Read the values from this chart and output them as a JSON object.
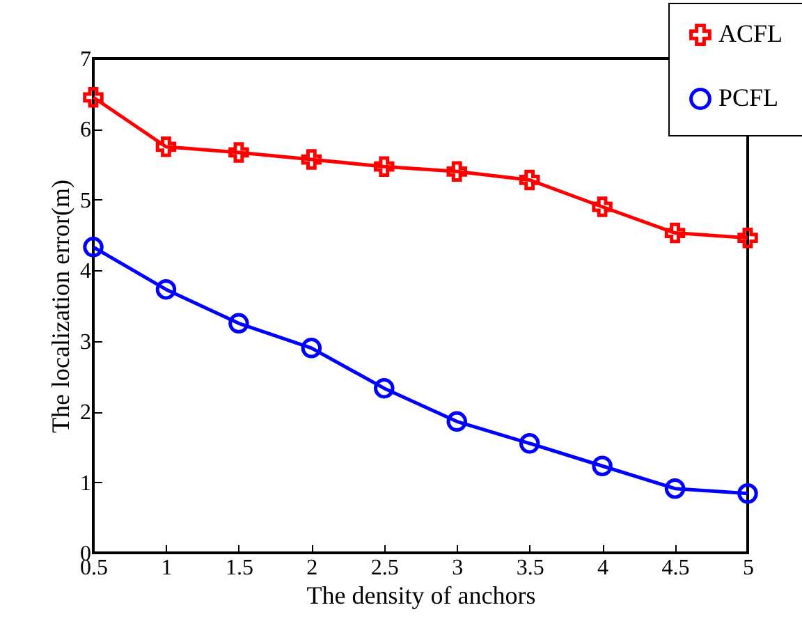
{
  "chart_data": {
    "type": "line",
    "xlabel": "The density of anchors",
    "ylabel": "The localization error(m)",
    "x": [
      0.5,
      1,
      1.5,
      2,
      2.5,
      3,
      3.5,
      4,
      4.5,
      5
    ],
    "series": [
      {
        "name": "ACFL",
        "color": "#ff0000",
        "marker": "cross",
        "values": [
          6.45,
          5.75,
          5.67,
          5.57,
          5.47,
          5.4,
          5.28,
          4.9,
          4.53,
          4.46
        ]
      },
      {
        "name": "PCFL",
        "color": "#0000ff",
        "marker": "circle",
        "values": [
          4.33,
          3.73,
          3.25,
          2.9,
          2.33,
          1.86,
          1.55,
          1.23,
          0.91,
          0.84
        ]
      }
    ],
    "xlim": [
      0.5,
      5
    ],
    "xticks": [
      0.5,
      1,
      1.5,
      2,
      2.5,
      3,
      3.5,
      4,
      4.5,
      5
    ],
    "ylim": [
      0,
      7
    ],
    "yticks": [
      0,
      1,
      2,
      3,
      4,
      5,
      6,
      7
    ],
    "grid": false,
    "legend": "top right",
    "line_style": "solid"
  }
}
